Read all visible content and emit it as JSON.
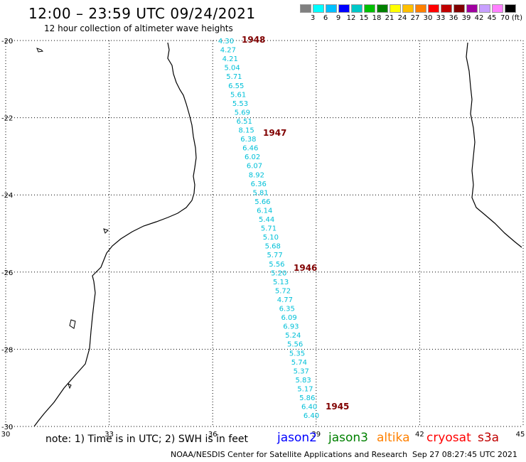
{
  "title": "12:00 – 23:59 UTC 09/24/2021",
  "subtitle": "12 hour collection of altimeter wave heights",
  "colorbar": {
    "labels": [
      "3",
      "6",
      "9",
      "12",
      "15",
      "18",
      "21",
      "24",
      "27",
      "30",
      "33",
      "36",
      "39",
      "42",
      "45",
      "70 (ft)"
    ],
    "colors": [
      "#808080",
      "#00ffff",
      "#00c0ff",
      "#0000ff",
      "#00c8c8",
      "#00c000",
      "#008000",
      "#ffff00",
      "#ffc000",
      "#ff8000",
      "#ff0000",
      "#c00000",
      "#800000",
      "#a000a0",
      "#c8a0ff",
      "#ff80ff",
      "#000000"
    ]
  },
  "axes": {
    "lon_ticks": [
      "30",
      "33",
      "36",
      "39",
      "42",
      "45"
    ],
    "lat_ticks": [
      "-20",
      "-22",
      "-24",
      "-26",
      "-28",
      "-30"
    ]
  },
  "track": {
    "color": "#00c0d8",
    "swh_ft": [
      "4.30",
      "4.27",
      "4.21",
      "5.04",
      "5.71",
      "6.55",
      "5.61",
      "5.53",
      "5.69",
      "6.51",
      "8.15",
      "6.38",
      "6.46",
      "6.02",
      "6.07",
      "8.92",
      "6.36",
      "5.81",
      "5.66",
      "6.14",
      "5.44",
      "5.71",
      "5.10",
      "5.68",
      "5.77",
      "5.56",
      "5.20",
      "5.13",
      "5.72",
      "4.77",
      "6.35",
      "6.09",
      "6.93",
      "5.24",
      "5.56",
      "5.35",
      "5.74",
      "5.37",
      "5.83",
      "5.17",
      "5.86",
      "6.40",
      "6.40"
    ],
    "time_labels": [
      "1948",
      "1947",
      "1946",
      "1945"
    ],
    "time_color": "#800000"
  },
  "note": "note: 1) Time is in UTC; 2) SWH is in feet",
  "missions": [
    {
      "name": "jason2",
      "color": "#0000ff"
    },
    {
      "name": "jason3",
      "color": "#008000"
    },
    {
      "name": "altika",
      "color": "#ff8000"
    },
    {
      "name": "cryosat",
      "color": "#ff0000"
    },
    {
      "name": "s3a",
      "color": "#c00000"
    }
  ],
  "footer": "NOAA/NESDIS Center for Satellite Applications and Research",
  "timestamp": "Sep 27 08:27:45 UTC 2021"
}
